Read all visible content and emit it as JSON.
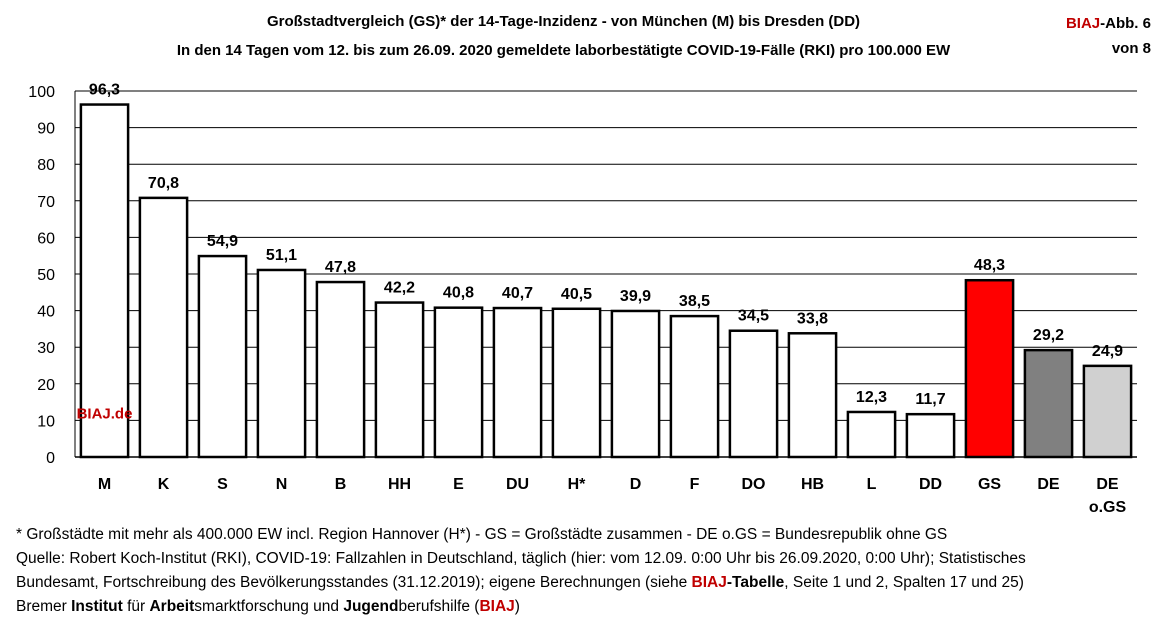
{
  "header": {
    "title_line1": "Großstadtvergleich (GS)* der 14-Tage-Inzidenz - von München (M) bis Dresden (DD)",
    "title_line2": "In den 14 Tagen vom 12. bis zum 26.09. 2020 gemeldete laborbestätigte COVID-19-Fälle (RKI) pro 100.000 EW",
    "badge_brand": "BIAJ",
    "badge_rest": "-Abb. 6",
    "badge_line2": "von 8"
  },
  "chart_data": {
    "type": "bar",
    "categories": [
      "M",
      "K",
      "S",
      "N",
      "B",
      "HH",
      "E",
      "DU",
      "H*",
      "D",
      "F",
      "DO",
      "HB",
      "L",
      "DD",
      "GS",
      "DE",
      "DE o.GS"
    ],
    "values": [
      96.3,
      70.8,
      54.9,
      51.1,
      47.8,
      42.2,
      40.8,
      40.7,
      40.5,
      39.9,
      38.5,
      34.5,
      33.8,
      12.3,
      11.7,
      48.3,
      29.2,
      24.9
    ],
    "value_labels": [
      "96,3",
      "70,8",
      "54,9",
      "51,1",
      "47,8",
      "42,2",
      "40,8",
      "40,7",
      "40,5",
      "39,9",
      "38,5",
      "34,5",
      "33,8",
      "12,3",
      "11,7",
      "48,3",
      "29,2",
      "24,9"
    ],
    "bar_colors": [
      "#ffffff",
      "#ffffff",
      "#ffffff",
      "#ffffff",
      "#ffffff",
      "#ffffff",
      "#ffffff",
      "#ffffff",
      "#ffffff",
      "#ffffff",
      "#ffffff",
      "#ffffff",
      "#ffffff",
      "#ffffff",
      "#ffffff",
      "#ff0000",
      "#808080",
      "#d0d0d0"
    ],
    "ylim": [
      0,
      100
    ],
    "yticks": [
      0,
      10,
      20,
      30,
      40,
      50,
      60,
      70,
      80,
      90,
      100
    ],
    "grid": true,
    "watermark": "BIAJ.de",
    "watermark_color": "#c00000"
  },
  "notes": {
    "line1": "* Großstädte mit mehr als 400.000 EW incl. Region Hannover (H*) - GS = Großstädte zusammen - DE o.GS = Bundesrepublik ohne GS",
    "line2": "Quelle: Robert Koch-Institut (RKI), COVID-19: Fallzahlen in Deutschland, täglich (hier: vom 12.09. 0:00 Uhr bis 26.09.2020, 0:00 Uhr); Statistisches",
    "line3_a": "Bundesamt, Fortschreibung des Bevölkerungsstandes (31.12.2019); eigene Berechnungen (siehe ",
    "line3_brand": "BIAJ",
    "line3_b": "-Tabelle",
    "line3_c": ", Seite 1 und 2, Spalten 17 und 25)",
    "line4_a": "Bremer ",
    "line4_b": "Institut",
    "line4_c": " für ",
    "line4_d": "Arbeit",
    "line4_e": "smarktforschung und ",
    "line4_f": "Jugend",
    "line4_g": "berufshilfe (",
    "line4_h": "BIAJ",
    "line4_i": ")"
  }
}
